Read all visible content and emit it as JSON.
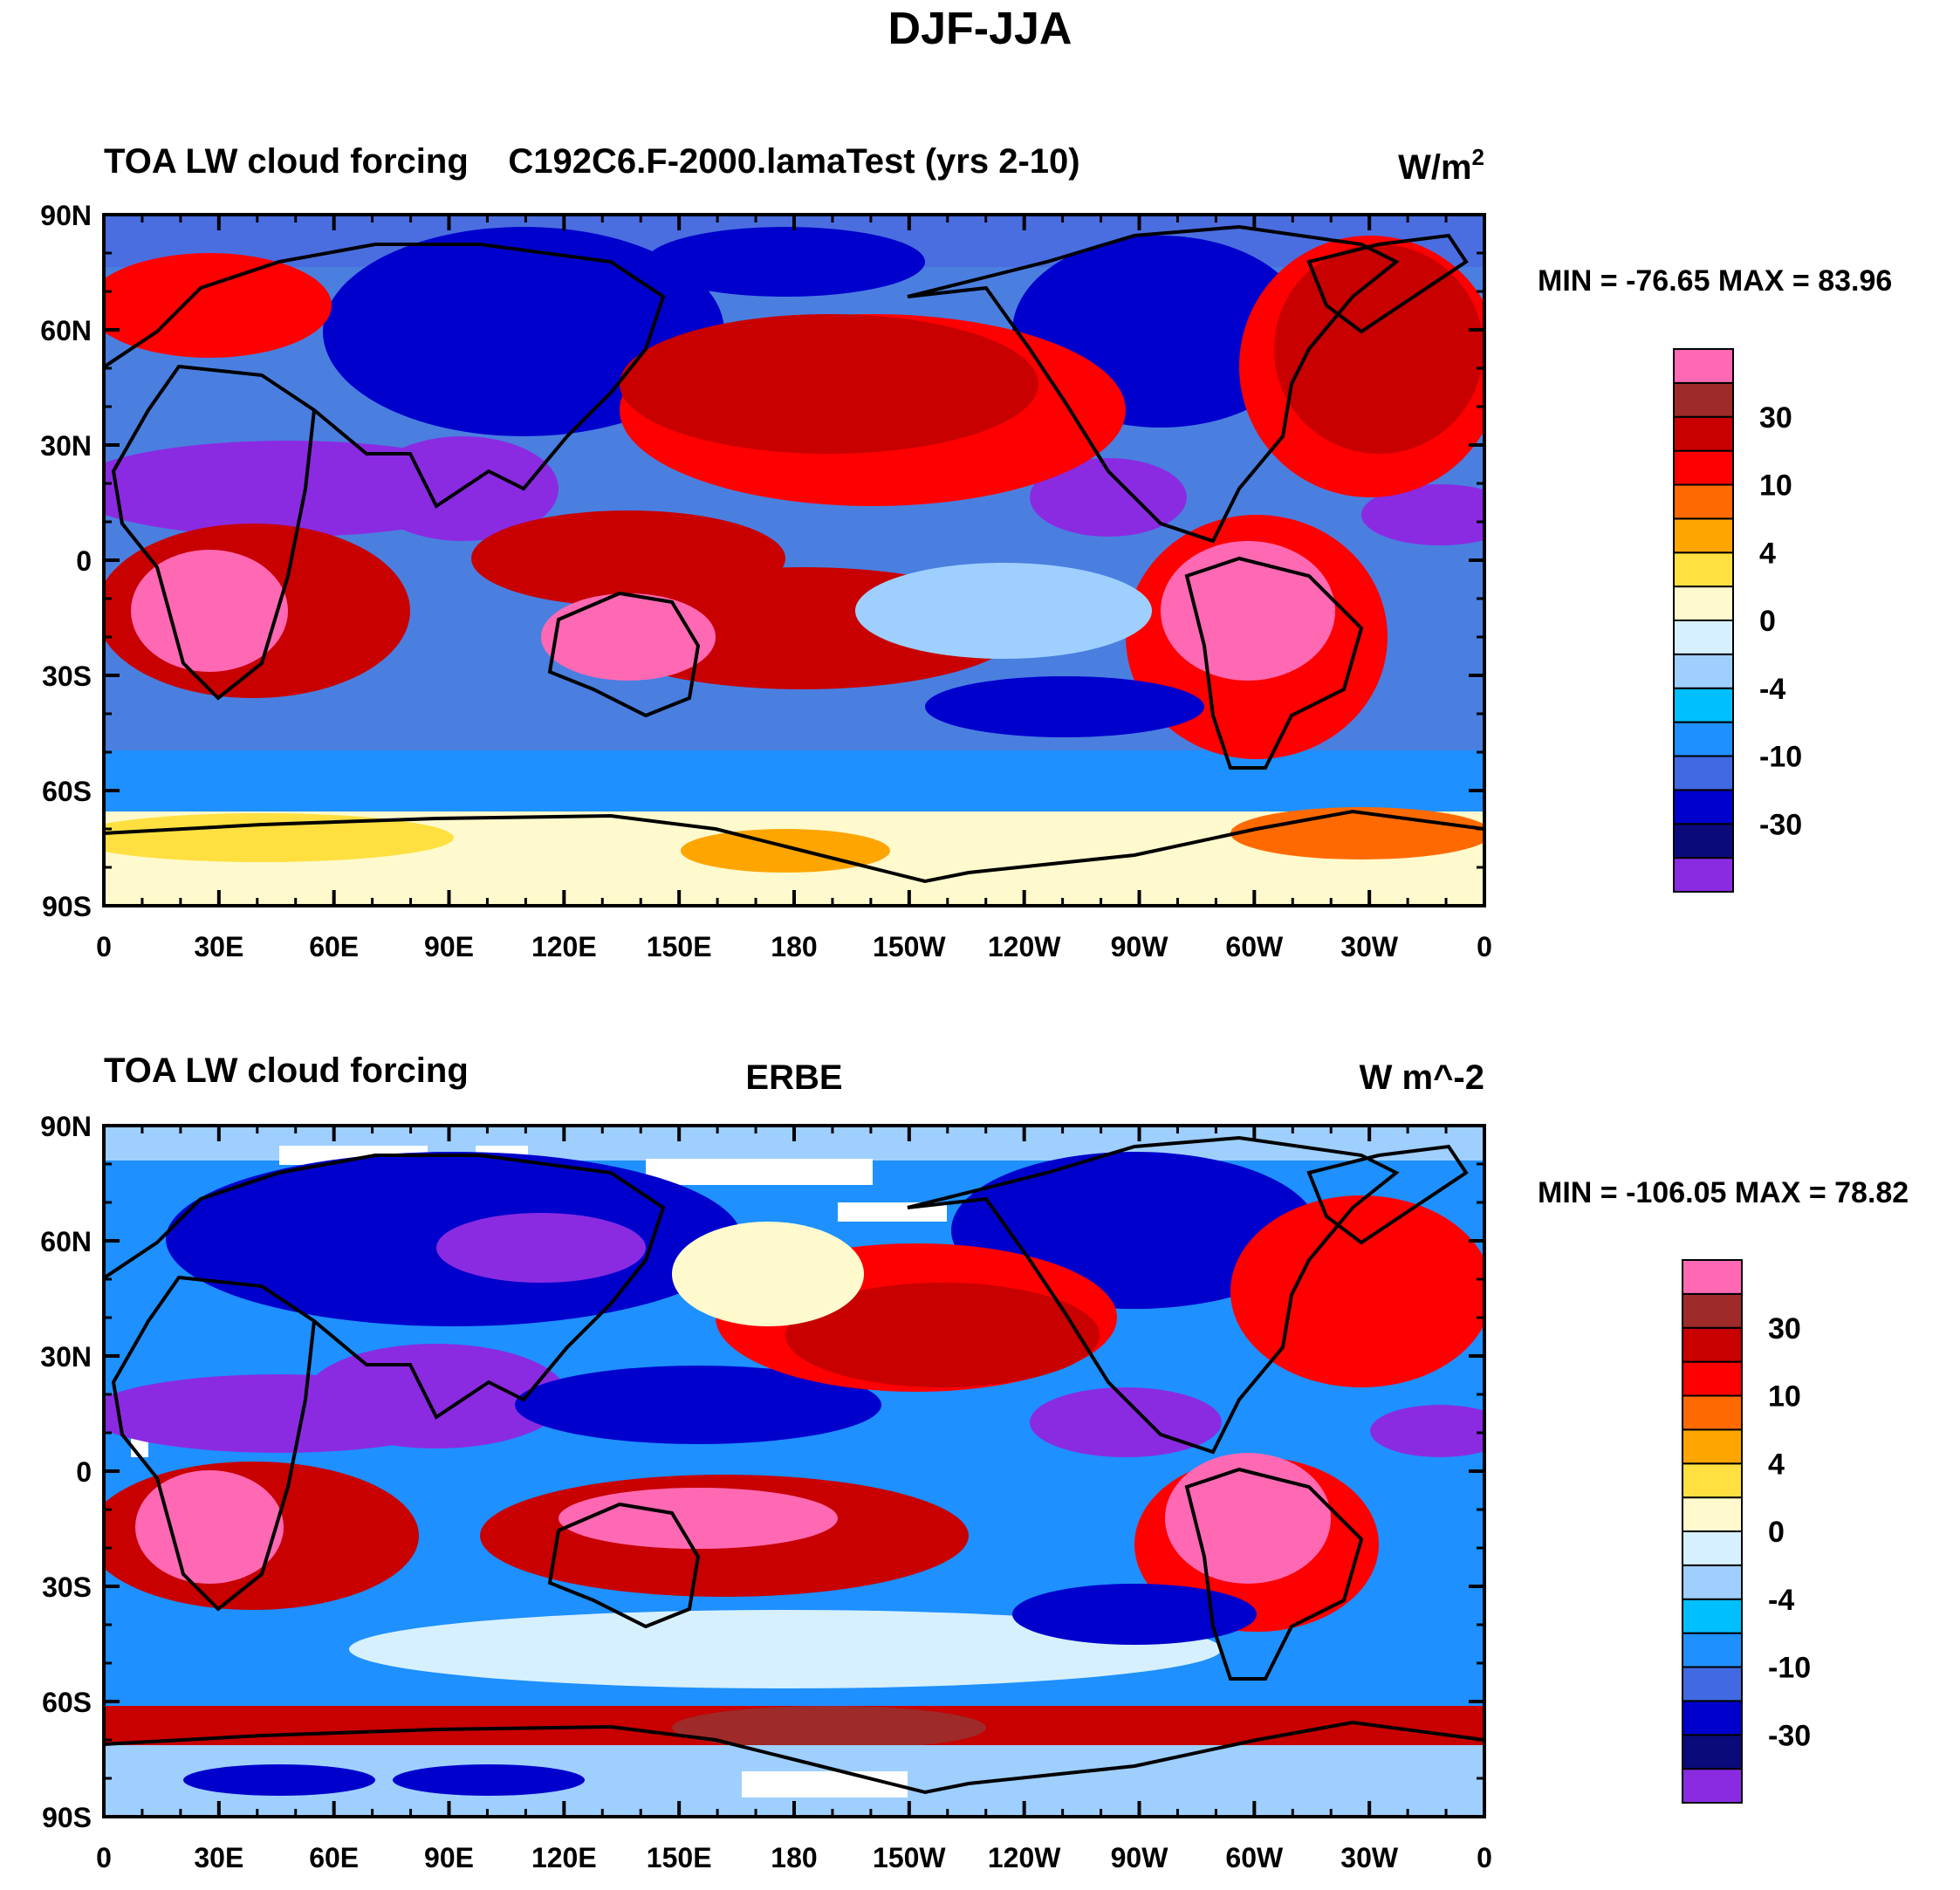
{
  "title": "DJF-JJA",
  "x_ticks": [
    "0",
    "30E",
    "60E",
    "90E",
    "120E",
    "150E",
    "180",
    "150W",
    "120W",
    "90W",
    "60W",
    "30W",
    "0"
  ],
  "y_ticks": [
    "90N",
    "60N",
    "30N",
    "0",
    "30S",
    "60S",
    "90S"
  ],
  "colorbar": {
    "colors": [
      "#8a2be2",
      "#0a0a7a",
      "#0000cd",
      "#4169e1",
      "#1e90ff",
      "#00bfff",
      "#9fcfff",
      "#d6f0ff",
      "#fffacd",
      "#ffe040",
      "#ffa500",
      "#ff6a00",
      "#ff0000",
      "#c80000",
      "#9e2a2a",
      "#ff69b4"
    ],
    "labels": [
      "-30",
      "-10",
      "-4",
      "0",
      "4",
      "10",
      "30"
    ]
  },
  "panels": [
    {
      "left_title": "TOA LW cloud forcing",
      "center_title": "C192C6.F-2000.lamaTest (yrs 2-10)",
      "units_base": "W/m",
      "units_sup": "2",
      "stats": "MIN = -76.65 MAX =  83.96"
    },
    {
      "left_title": "TOA LW cloud forcing",
      "center_title": "ERBE",
      "units_base": "W m^-2",
      "units_sup": "",
      "stats": "MIN = -106.05 MAX =  78.82"
    }
  ],
  "colors": {
    "ocean_background": "#4a7fe0",
    "coastline": "#000000"
  }
}
